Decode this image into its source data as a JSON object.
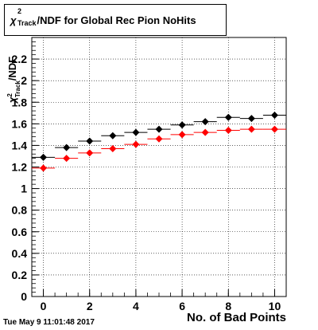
{
  "title": {
    "symbol": "χ",
    "sup": "2",
    "sub": "Track",
    "text": "/NDF for Global Rec Pion NoHits"
  },
  "footer_date": "Tue May  9 11:01:48 2017",
  "chart_data": {
    "type": "scatter",
    "xlabel": "No. of Bad Points",
    "ylabel_parts": {
      "symbol": "χ",
      "sup": "2",
      "sub": "Track",
      "text": "/NDF"
    },
    "xlim": [
      -0.5,
      10.5
    ],
    "ylim": [
      0,
      2.4
    ],
    "x_ticks": [
      0,
      2,
      4,
      6,
      8,
      10
    ],
    "y_ticks": [
      0,
      0.2,
      0.4,
      0.6,
      0.8,
      1,
      1.2,
      1.4,
      1.6,
      1.8,
      2,
      2.2
    ],
    "grid": true,
    "series": [
      {
        "color": "#000000",
        "x": [
          0,
          1,
          2,
          3,
          4,
          5,
          6,
          7,
          8,
          9,
          10
        ],
        "y": [
          1.29,
          1.38,
          1.44,
          1.49,
          1.52,
          1.55,
          1.59,
          1.62,
          1.66,
          1.65,
          1.68
        ]
      },
      {
        "color": "#ff0000",
        "x": [
          0,
          1,
          2,
          3,
          4,
          5,
          6,
          7,
          8,
          9,
          10
        ],
        "y": [
          1.19,
          1.28,
          1.33,
          1.37,
          1.41,
          1.46,
          1.5,
          1.52,
          1.54,
          1.55,
          1.55
        ]
      }
    ]
  }
}
